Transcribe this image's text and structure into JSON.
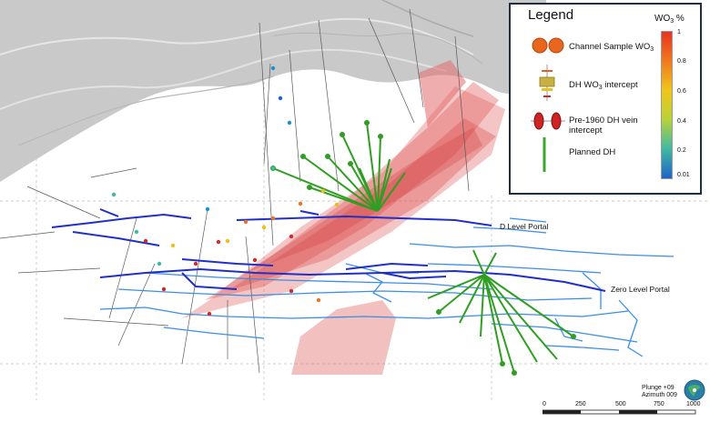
{
  "labels": {
    "d_level_portal": "D Level Portal",
    "zero_level_portal": "Zero Level Portal"
  },
  "legend": {
    "title": "Legend",
    "items": {
      "channel": {
        "text": "Channel Sample WO",
        "sub": "3"
      },
      "intercept": {
        "text": "DH WO",
        "sub": "3",
        "after": " intercept"
      },
      "pre1960": {
        "line1": "Pre-1960 DH vein",
        "line2": "intercept"
      },
      "planned": {
        "text": "Planned DH"
      }
    },
    "ramp": {
      "title": "WO",
      "title_sub": "3",
      "title_after": " %",
      "ticks": [
        "1",
        "0.8",
        "0.6",
        "0.4",
        "0.2",
        "0.01"
      ]
    }
  },
  "orientation": {
    "plunge": "Plunge +09",
    "azimuth": "Azimuth 009"
  },
  "scale_bar": {
    "labels": [
      "0",
      "250",
      "500",
      "750",
      "1000"
    ]
  },
  "colors": {
    "terrain": "#d4d4d4",
    "vein_zone": "#e05a5a",
    "upper_workings": "#1f2fc8",
    "lower_workings": "#3a8ee6",
    "planned_dh": "#2f9e22",
    "legend_border": "#1f2f3f"
  }
}
